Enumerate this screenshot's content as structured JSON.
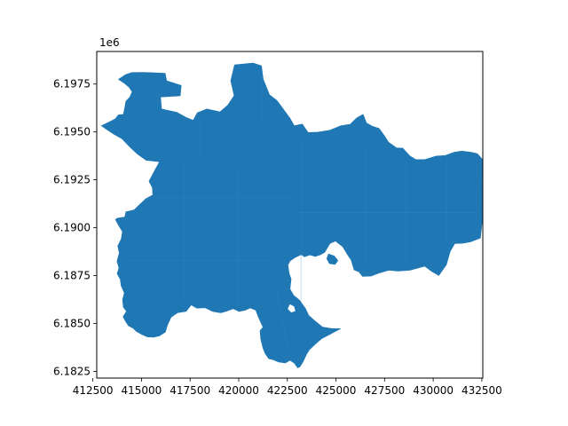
{
  "chart_data": {
    "type": "map",
    "title": "",
    "xlabel": "",
    "ylabel": "",
    "y_offset_label": "1e6",
    "xlim": [
      412700,
      432550
    ],
    "ylim": [
      6182150,
      6199200
    ],
    "x_ticks": [
      {
        "value": 412500,
        "label": "412500"
      },
      {
        "value": 415000,
        "label": "415000"
      },
      {
        "value": 417500,
        "label": "417500"
      },
      {
        "value": 420000,
        "label": "420000"
      },
      {
        "value": 422500,
        "label": "422500"
      },
      {
        "value": 425000,
        "label": "425000"
      },
      {
        "value": 427500,
        "label": "427500"
      },
      {
        "value": 430000,
        "label": "430000"
      },
      {
        "value": 432500,
        "label": "432500"
      }
    ],
    "y_ticks": [
      {
        "value": 6182500,
        "label": "6.1825"
      },
      {
        "value": 6185000,
        "label": "6.1850"
      },
      {
        "value": 6187500,
        "label": "6.1875"
      },
      {
        "value": 6190000,
        "label": "6.1900"
      },
      {
        "value": 6192500,
        "label": "6.1925"
      },
      {
        "value": 6195000,
        "label": "6.1950"
      },
      {
        "value": 6197500,
        "label": "6.1975"
      }
    ],
    "fill_color": "#1f77b4",
    "edge_color": "#3a87c0",
    "grid": false,
    "legend": "none",
    "outline": [
      [
        415125,
        6198112
      ],
      [
        416216,
        6198062
      ],
      [
        416298,
        6197670
      ],
      [
        417044,
        6197425
      ],
      [
        416993,
        6196886
      ],
      [
        415981,
        6196824
      ],
      [
        416030,
        6196197
      ],
      [
        416812,
        6196024
      ],
      [
        417291,
        6195756
      ],
      [
        417659,
        6195610
      ],
      [
        417876,
        6196004
      ],
      [
        418363,
        6196196
      ],
      [
        419045,
        6196049
      ],
      [
        419434,
        6196397
      ],
      [
        419764,
        6196891
      ],
      [
        419590,
        6197671
      ],
      [
        419786,
        6198500
      ],
      [
        420738,
        6198599
      ],
      [
        421169,
        6198451
      ],
      [
        421262,
        6197745
      ],
      [
        421586,
        6196936
      ],
      [
        421963,
        6196644
      ],
      [
        422197,
        6196324
      ],
      [
        422646,
        6195696
      ],
      [
        422854,
        6195323
      ],
      [
        423269,
        6195411
      ],
      [
        423566,
        6194968
      ],
      [
        424067,
        6194987
      ],
      [
        424684,
        6195085
      ],
      [
        425253,
        6195323
      ],
      [
        425731,
        6195402
      ],
      [
        426071,
        6195734
      ],
      [
        426399,
        6195913
      ],
      [
        426569,
        6195470
      ],
      [
        426859,
        6195303
      ],
      [
        427212,
        6195186
      ],
      [
        427491,
        6194803
      ],
      [
        427698,
        6194469
      ],
      [
        428122,
        6194165
      ],
      [
        428436,
        6194155
      ],
      [
        428805,
        6193743
      ],
      [
        429100,
        6193556
      ],
      [
        429560,
        6193556
      ],
      [
        430169,
        6193743
      ],
      [
        430611,
        6193763
      ],
      [
        431087,
        6193940
      ],
      [
        431475,
        6194000
      ],
      [
        431979,
        6193930
      ],
      [
        432277,
        6193860
      ],
      [
        432538,
        6193560
      ],
      [
        432512,
        6191600
      ],
      [
        432512,
        6190248
      ],
      [
        432426,
        6189463
      ],
      [
        431940,
        6189266
      ],
      [
        431511,
        6189188
      ],
      [
        431110,
        6189168
      ],
      [
        430871,
        6188757
      ],
      [
        430679,
        6188071
      ],
      [
        430285,
        6187502
      ],
      [
        429922,
        6187718
      ],
      [
        429560,
        6187993
      ],
      [
        428802,
        6187777
      ],
      [
        428195,
        6187738
      ],
      [
        427723,
        6187777
      ],
      [
        427239,
        6187640
      ],
      [
        426799,
        6187473
      ],
      [
        426373,
        6187453
      ],
      [
        426175,
        6187700
      ],
      [
        425935,
        6187797
      ],
      [
        425774,
        6188325
      ],
      [
        425592,
        6188600
      ],
      [
        425357,
        6188993
      ],
      [
        424985,
        6189302
      ],
      [
        424690,
        6189183
      ],
      [
        424420,
        6188717
      ],
      [
        424223,
        6188598
      ],
      [
        423950,
        6188500
      ],
      [
        423651,
        6188580
      ],
      [
        423381,
        6188480
      ],
      [
        423212,
        6188600
      ],
      [
        422891,
        6188441
      ],
      [
        422637,
        6188267
      ],
      [
        422531,
        6188050
      ],
      [
        422598,
        6187600
      ],
      [
        422693,
        6187322
      ],
      [
        422637,
        6186792
      ],
      [
        422831,
        6186460
      ],
      [
        423135,
        6186202
      ],
      [
        423436,
        6185771
      ],
      [
        423597,
        6185420
      ],
      [
        423885,
        6185163
      ],
      [
        424314,
        6184811
      ],
      [
        424813,
        6184732
      ],
      [
        425235,
        6184732
      ],
      [
        424700,
        6184437
      ],
      [
        424281,
        6184220
      ],
      [
        423981,
        6183963
      ],
      [
        423627,
        6183628
      ],
      [
        423478,
        6183373
      ],
      [
        423317,
        6183020
      ],
      [
        423145,
        6182735
      ],
      [
        423026,
        6182686
      ],
      [
        422867,
        6182922
      ],
      [
        422640,
        6183077
      ],
      [
        422398,
        6182939
      ],
      [
        422050,
        6182990
      ],
      [
        421744,
        6183119
      ],
      [
        421547,
        6183158
      ],
      [
        421362,
        6183433
      ],
      [
        421253,
        6183700
      ],
      [
        421132,
        6184195
      ],
      [
        421096,
        6184624
      ],
      [
        421250,
        6184803
      ],
      [
        421115,
        6185100
      ],
      [
        421001,
        6185355
      ],
      [
        420879,
        6185693
      ],
      [
        420591,
        6185810
      ],
      [
        420340,
        6185693
      ],
      [
        420018,
        6185623
      ],
      [
        419714,
        6185771
      ],
      [
        419409,
        6185653
      ],
      [
        419080,
        6185555
      ],
      [
        418667,
        6185623
      ],
      [
        418284,
        6185819
      ],
      [
        417849,
        6185800
      ],
      [
        417556,
        6185966
      ],
      [
        417302,
        6185634
      ],
      [
        416868,
        6185566
      ],
      [
        416522,
        6185330
      ],
      [
        416343,
        6184932
      ],
      [
        416228,
        6184555
      ],
      [
        415940,
        6184358
      ],
      [
        415625,
        6184288
      ],
      [
        415306,
        6184300
      ],
      [
        415030,
        6184418
      ],
      [
        414727,
        6184598
      ],
      [
        414575,
        6184756
      ],
      [
        414335,
        6184880
      ],
      [
        414200,
        6185080
      ],
      [
        414050,
        6185350
      ],
      [
        414230,
        6185635
      ],
      [
        414070,
        6185860
      ],
      [
        414030,
        6186240
      ],
      [
        414120,
        6186600
      ],
      [
        413950,
        6186980
      ],
      [
        413915,
        6187300
      ],
      [
        413750,
        6187600
      ],
      [
        413840,
        6187900
      ],
      [
        413740,
        6188250
      ],
      [
        413860,
        6188680
      ],
      [
        413780,
        6189050
      ],
      [
        413960,
        6189410
      ],
      [
        414020,
        6189800
      ],
      [
        413840,
        6190090
      ],
      [
        413665,
        6190428
      ],
      [
        413770,
        6190500
      ],
      [
        414140,
        6190560
      ],
      [
        414200,
        6190828
      ],
      [
        414622,
        6190932
      ],
      [
        414931,
        6191230
      ],
      [
        415212,
        6191502
      ],
      [
        415580,
        6191705
      ],
      [
        415560,
        6192090
      ],
      [
        415390,
        6192420
      ],
      [
        415680,
        6192990
      ],
      [
        415930,
        6193440
      ],
      [
        415240,
        6193520
      ],
      [
        414790,
        6193850
      ],
      [
        414380,
        6194240
      ],
      [
        414000,
        6194640
      ],
      [
        413600,
        6194870
      ],
      [
        413200,
        6195130
      ],
      [
        412940,
        6195320
      ],
      [
        413300,
        6195500
      ],
      [
        413650,
        6195680
      ],
      [
        413820,
        6195890
      ],
      [
        414071,
        6195914
      ],
      [
        414153,
        6196321
      ],
      [
        414201,
        6196604
      ],
      [
        414403,
        6196820
      ],
      [
        414521,
        6197098
      ],
      [
        414355,
        6197341
      ],
      [
        414110,
        6197548
      ],
      [
        413820,
        6197747
      ],
      [
        414195,
        6198000
      ],
      [
        414520,
        6198100
      ],
      [
        415125,
        6198112
      ]
    ],
    "holes": [
      [
        [
          424620,
          6188630
        ],
        [
          424920,
          6188520
        ],
        [
          425100,
          6188280
        ],
        [
          424950,
          6188080
        ],
        [
          424660,
          6188130
        ],
        [
          424530,
          6188380
        ],
        [
          424620,
          6188630
        ]
      ],
      [
        [
          422620,
          6186020
        ],
        [
          422860,
          6185900
        ],
        [
          422930,
          6185640
        ],
        [
          422700,
          6185560
        ],
        [
          422500,
          6185760
        ],
        [
          422620,
          6186020
        ]
      ]
    ]
  }
}
